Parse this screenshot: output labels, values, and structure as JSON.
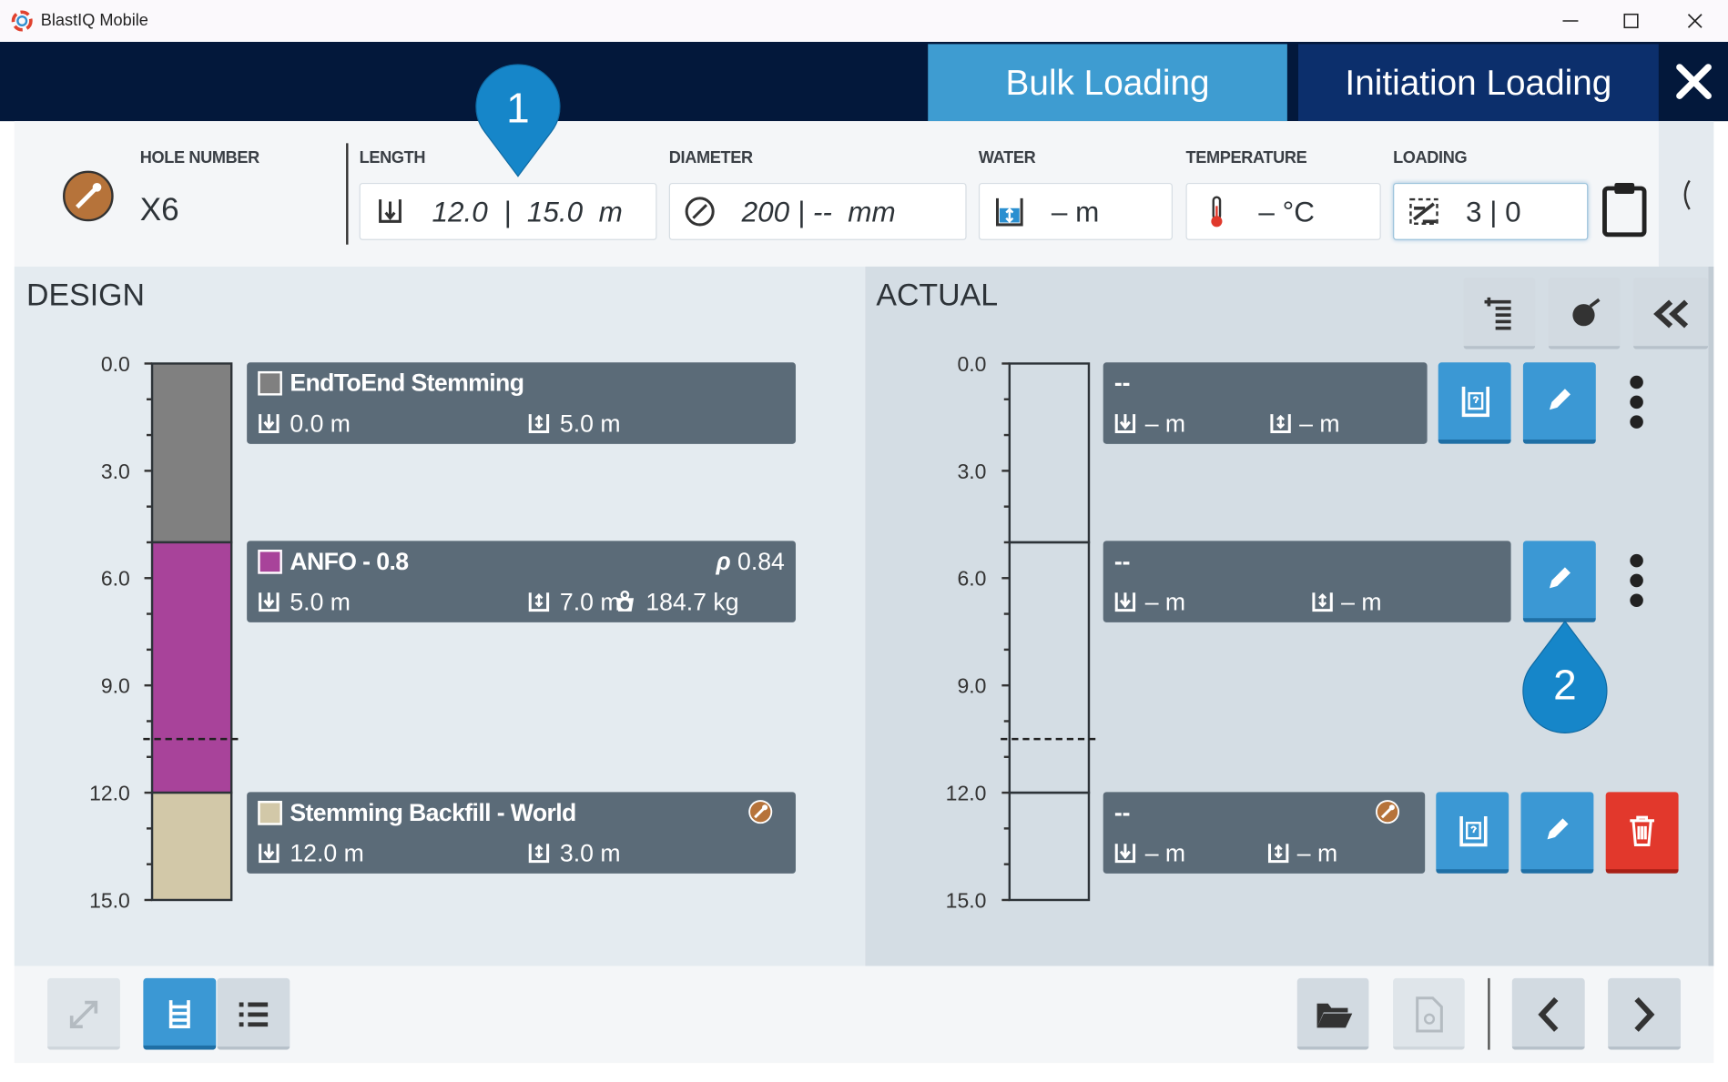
{
  "window": {
    "title": "BlastIQ Mobile"
  },
  "tabs": [
    "Bulk Loading",
    "Initiation Loading"
  ],
  "header": {
    "hole": {
      "label": "HOLE NUMBER",
      "value": "X6"
    },
    "fields": [
      {
        "label": "LENGTH",
        "value": "12.0  |  15.0  m"
      },
      {
        "label": "DIAMETER",
        "value": "200 | --  mm"
      },
      {
        "label": "WATER",
        "value": "– m"
      },
      {
        "label": "TEMPERATURE",
        "value": "– °C"
      },
      {
        "label": "LOADING",
        "value": "3 | 0"
      }
    ]
  },
  "callouts": [
    "1",
    "2"
  ],
  "axis": {
    "range": [
      0,
      15
    ],
    "ticks": [
      {
        "value": 0,
        "label": "0.0"
      },
      {
        "value": 3,
        "label": "3.0"
      },
      {
        "value": 6,
        "label": "6.0"
      },
      {
        "value": 9,
        "label": "9.0"
      },
      {
        "value": 12,
        "label": "12.0"
      },
      {
        "value": 15,
        "label": "15.0"
      }
    ],
    "minor_ticks": [
      1,
      2,
      4,
      5,
      7,
      8,
      10,
      11,
      13,
      14
    ],
    "marker_depth": 10.5
  },
  "design": {
    "title": "DESIGN",
    "decks": [
      {
        "name": "EndToEnd Stemming",
        "color": "#808080",
        "top": 0,
        "top_label": "0.0 m",
        "length": 5,
        "length_label": "5.0 m"
      },
      {
        "name": "ANFO - 0.8",
        "color": "#a8439a",
        "top": 5,
        "top_label": "5.0 m",
        "length": 7,
        "length_label": "7.0 m",
        "density": {
          "symbol": "ρ",
          "value": "0.84"
        },
        "mass": "184.7 kg"
      },
      {
        "name": "Stemming Backfill - World",
        "color": "#d2c8a8",
        "top": 12,
        "top_label": "12.0 m",
        "length": 3,
        "length_label": "3.0 m"
      }
    ]
  },
  "actual": {
    "title": "ACTUAL",
    "decks": [
      {
        "name": "--",
        "top_label": "– m",
        "length_label": "– m"
      },
      {
        "name": "--",
        "top_label": "– m",
        "length_label": "– m"
      },
      {
        "name": "--",
        "top_label": "– m",
        "length_label": "– m"
      }
    ]
  }
}
